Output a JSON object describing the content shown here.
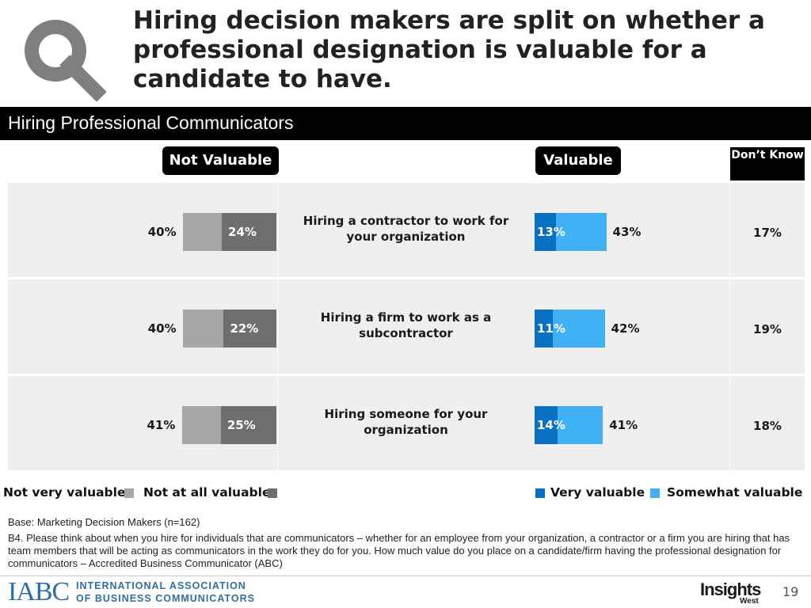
{
  "title": "Hiring decision makers are split on whether a professional designation is valuable for a candidate to have.",
  "section": "Hiring Professional Communicators",
  "headers": {
    "not_valuable": "Not Valuable",
    "valuable": "Valuable",
    "dont_know": "Don’t Know"
  },
  "chart_data": {
    "type": "bar",
    "orientation": "horizontal-diverging",
    "categories": [
      "Hiring a contractor to work for your organization",
      "Hiring a firm to work as a subcontractor",
      "Hiring someone for your organization"
    ],
    "not_valuable": {
      "total_labels": [
        "40%",
        "40%",
        "41%"
      ],
      "series": [
        {
          "name": "Not very valuable",
          "values": [
            16,
            18,
            16
          ],
          "color": "#a6a6a6"
        },
        {
          "name": "Not at all valuable",
          "values": [
            24,
            22,
            25
          ],
          "labels": [
            "24%",
            "22%",
            "25%"
          ],
          "color": "#6e6e6e"
        }
      ]
    },
    "valuable": {
      "total_labels": [
        "43%",
        "42%",
        "41%"
      ],
      "series": [
        {
          "name": "Very valuable",
          "values": [
            13,
            11,
            14
          ],
          "labels": [
            "13%",
            "11%",
            "14%"
          ],
          "color": "#0a70c2"
        },
        {
          "name": "Somewhat valuable",
          "values": [
            30,
            31,
            27
          ],
          "color": "#3fb0f4"
        }
      ]
    },
    "dont_know": {
      "values": [
        17,
        19,
        18
      ],
      "labels": [
        "17%",
        "19%",
        "18%"
      ]
    },
    "legend": {
      "left": [
        "Not very valuable",
        "Not at all valuable"
      ],
      "right": [
        "Very valuable",
        "Somewhat valuable"
      ]
    }
  },
  "footnote": {
    "base": "Base: Marketing Decision Makers (n=162)",
    "question": "B4. Please think about when you hire for individuals that are communicators – whether for an employee from your organization, a contractor or a firm you are hiring that has team members that will be acting as communicators in the work they do for you. How much value do you place on a candidate/firm having the professional designation for communicators – Accredited Business Communicator (ABC)"
  },
  "footer": {
    "logo_left_abbr": "IABC",
    "logo_left_line1": "INTERNATIONAL ASSOCIATION",
    "logo_left_line2": "OF BUSINESS COMMUNICATORS",
    "logo_right": "Insights",
    "logo_right_sub": "West",
    "page_number": "19"
  },
  "icons": {
    "header": "magnifier-icon"
  }
}
